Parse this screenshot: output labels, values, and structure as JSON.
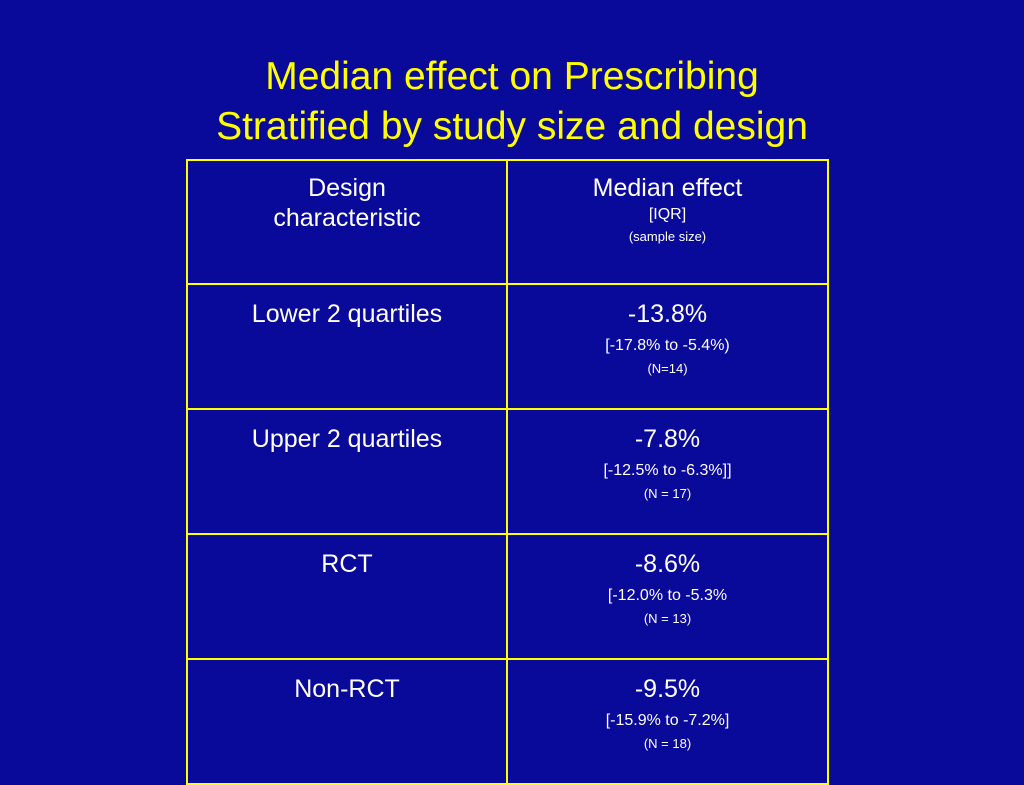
{
  "title": {
    "line1": "Median effect on Prescribing",
    "line2": "Stratified by study size and design"
  },
  "table": {
    "header": {
      "design_line1": "Design",
      "design_line2": "characteristic",
      "effect_main": "Median effect",
      "effect_iqr": "[IQR]",
      "effect_n": "(sample size)"
    },
    "rows": [
      {
        "label": "Lower 2 quartiles",
        "median": "-13.8%",
        "iqr": "[-17.8% to -5.4%)",
        "n": "(N=14)"
      },
      {
        "label": "Upper 2 quartiles",
        "median": "-7.8%",
        "iqr": "[-12.5% to -6.3%]]",
        "n": "(N = 17)"
      },
      {
        "label": "RCT",
        "median": "-8.6%",
        "iqr": "[-12.0% to -5.3%",
        "n": "(N = 13)"
      },
      {
        "label": "Non-RCT",
        "median": "-9.5%",
        "iqr": "[-15.9% to -7.2%]",
        "n": "(N = 18)"
      }
    ]
  },
  "colors": {
    "background": "#0a0a9a",
    "title": "#ffff00",
    "border": "#ffff00",
    "text": "#ffffff"
  }
}
